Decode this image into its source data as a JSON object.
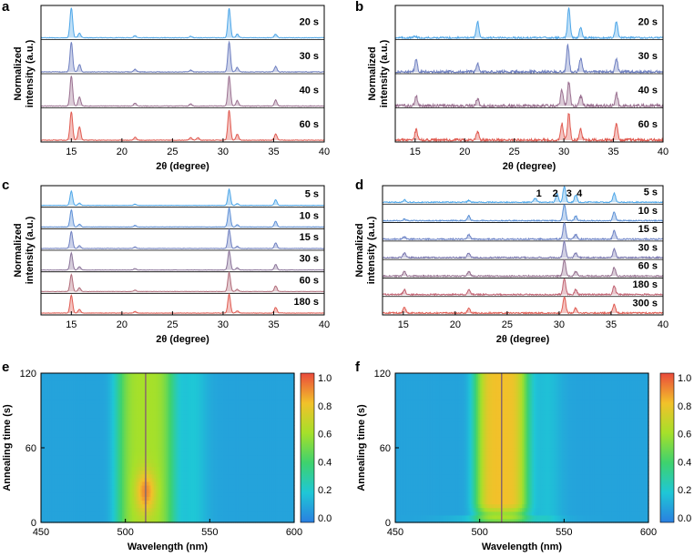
{
  "panels": [
    {
      "id": "a",
      "label": "a",
      "type": "xrd",
      "xlabel": "2θ (degree)",
      "ylabel": [
        "Normalized",
        "intensity (a.u.)"
      ],
      "xlim": [
        12,
        40
      ],
      "xticks": [
        15,
        20,
        25,
        30,
        35,
        40
      ],
      "traces": [
        {
          "label": "20 s",
          "color": "#4da6e8",
          "peaks": [
            [
              15.0,
              1.0
            ],
            [
              15.8,
              0.15
            ],
            [
              21.3,
              0.07
            ],
            [
              26.8,
              0.05
            ],
            [
              30.6,
              0.98
            ],
            [
              31.4,
              0.12
            ],
            [
              35.2,
              0.12
            ]
          ],
          "noise": 0.01
        },
        {
          "label": "30 s",
          "color": "#6e7fc0",
          "peaks": [
            [
              15.0,
              1.0
            ],
            [
              15.8,
              0.25
            ],
            [
              21.3,
              0.09
            ],
            [
              26.8,
              0.06
            ],
            [
              30.6,
              1.0
            ],
            [
              31.4,
              0.15
            ],
            [
              35.2,
              0.18
            ]
          ],
          "noise": 0.01
        },
        {
          "label": "40 s",
          "color": "#9a7090",
          "peaks": [
            [
              15.0,
              1.0
            ],
            [
              15.8,
              0.3
            ],
            [
              21.3,
              0.1
            ],
            [
              26.8,
              0.07
            ],
            [
              30.6,
              1.0
            ],
            [
              31.4,
              0.18
            ],
            [
              35.2,
              0.2
            ]
          ],
          "noise": 0.01
        },
        {
          "label": "60 s",
          "color": "#e05a50",
          "peaks": [
            [
              15.0,
              0.95
            ],
            [
              15.8,
              0.45
            ],
            [
              21.3,
              0.1
            ],
            [
              26.8,
              0.08
            ],
            [
              27.5,
              0.08
            ],
            [
              30.6,
              1.0
            ],
            [
              31.4,
              0.2
            ],
            [
              35.2,
              0.2
            ]
          ],
          "noise": 0.01
        }
      ]
    },
    {
      "id": "b",
      "label": "b",
      "type": "xrd",
      "xlabel": "2θ (degree)",
      "ylabel": [
        "Normalized",
        "intensity (a.u.)"
      ],
      "xlim": [
        13,
        40
      ],
      "xticks": [
        15,
        20,
        25,
        30,
        35,
        40
      ],
      "traces": [
        {
          "label": "20 s",
          "color": "#4da6e8",
          "peaks": [
            [
              21.3,
              0.55
            ],
            [
              30.5,
              1.0
            ],
            [
              31.7,
              0.35
            ],
            [
              35.3,
              0.55
            ],
            [
              15.0,
              0.05
            ]
          ],
          "noise": 0.03
        },
        {
          "label": "30 s",
          "color": "#6e7fc0",
          "peaks": [
            [
              15.1,
              0.4
            ],
            [
              21.3,
              0.3
            ],
            [
              30.4,
              0.9
            ],
            [
              31.7,
              0.45
            ],
            [
              35.3,
              0.45
            ]
          ],
          "noise": 0.05
        },
        {
          "label": "40 s",
          "color": "#9a7090",
          "peaks": [
            [
              15.1,
              0.35
            ],
            [
              21.3,
              0.25
            ],
            [
              29.8,
              0.55
            ],
            [
              30.5,
              0.8
            ],
            [
              31.7,
              0.35
            ],
            [
              35.3,
              0.45
            ]
          ],
          "noise": 0.06
        },
        {
          "label": "60 s",
          "color": "#e05a50",
          "peaks": [
            [
              15.1,
              0.35
            ],
            [
              21.3,
              0.3
            ],
            [
              29.8,
              0.55
            ],
            [
              30.5,
              0.9
            ],
            [
              31.7,
              0.35
            ],
            [
              35.3,
              0.6
            ]
          ],
          "noise": 0.05
        }
      ]
    },
    {
      "id": "c",
      "label": "c",
      "type": "xrd",
      "xlabel": "2θ (degree)",
      "ylabel": [
        "Normalized",
        "intensity (a.u.)"
      ],
      "xlim": [
        12,
        40
      ],
      "xticks": [
        15,
        20,
        25,
        30,
        35,
        40
      ],
      "traces": [
        {
          "label": "5 s",
          "color": "#4da6e8",
          "peaks": [
            [
              15.0,
              0.75
            ],
            [
              15.8,
              0.12
            ],
            [
              21.3,
              0.06
            ],
            [
              30.6,
              0.85
            ],
            [
              31.4,
              0.1
            ],
            [
              35.2,
              0.3
            ]
          ],
          "noise": 0.01
        },
        {
          "label": "10 s",
          "color": "#5d8fd6",
          "peaks": [
            [
              15.0,
              0.9
            ],
            [
              15.8,
              0.15
            ],
            [
              21.3,
              0.08
            ],
            [
              30.6,
              1.0
            ],
            [
              31.4,
              0.12
            ],
            [
              35.2,
              0.3
            ]
          ],
          "noise": 0.01
        },
        {
          "label": "15 s",
          "color": "#6e7fc0",
          "peaks": [
            [
              15.0,
              0.9
            ],
            [
              15.8,
              0.15
            ],
            [
              21.3,
              0.08
            ],
            [
              30.6,
              1.0
            ],
            [
              31.4,
              0.12
            ],
            [
              35.2,
              0.3
            ]
          ],
          "noise": 0.01
        },
        {
          "label": "30 s",
          "color": "#8a7399",
          "peaks": [
            [
              15.0,
              0.9
            ],
            [
              15.8,
              0.18
            ],
            [
              21.3,
              0.08
            ],
            [
              30.6,
              1.0
            ],
            [
              31.4,
              0.12
            ],
            [
              35.2,
              0.3
            ]
          ],
          "noise": 0.01
        },
        {
          "label": "60 s",
          "color": "#b06a78",
          "peaks": [
            [
              15.0,
              0.9
            ],
            [
              15.8,
              0.2
            ],
            [
              21.3,
              0.08
            ],
            [
              30.6,
              1.0
            ],
            [
              31.4,
              0.12
            ],
            [
              35.2,
              0.3
            ]
          ],
          "noise": 0.01
        },
        {
          "label": "180 s",
          "color": "#e05a50",
          "peaks": [
            [
              15.0,
              0.95
            ],
            [
              15.8,
              0.2
            ],
            [
              21.3,
              0.08
            ],
            [
              30.6,
              1.0
            ],
            [
              31.4,
              0.12
            ],
            [
              35.2,
              0.3
            ]
          ],
          "noise": 0.01
        }
      ]
    },
    {
      "id": "d",
      "label": "d",
      "type": "xrd",
      "xlabel": "2θ (degree)",
      "ylabel": [
        "Normalized",
        "intensity (a.u.)"
      ],
      "xlim": [
        13,
        40
      ],
      "xticks": [
        15,
        20,
        25,
        30,
        35,
        40
      ],
      "peak_markers": [
        {
          "label": "1",
          "x": 27.7
        },
        {
          "label": "2",
          "x": 29.8
        },
        {
          "label": "3",
          "x": 30.6
        },
        {
          "label": "4",
          "x": 31.6
        }
      ],
      "traces": [
        {
          "label": "5 s",
          "color": "#4da6e8",
          "peaks": [
            [
              15.1,
              0.15
            ],
            [
              21.3,
              0.12
            ],
            [
              27.7,
              0.25
            ],
            [
              29.8,
              0.55
            ],
            [
              30.5,
              1.0
            ],
            [
              31.6,
              0.45
            ],
            [
              35.3,
              0.55
            ]
          ],
          "noise": 0.04
        },
        {
          "label": "10 s",
          "color": "#5a8fd5",
          "peaks": [
            [
              15.1,
              0.1
            ],
            [
              21.3,
              0.3
            ],
            [
              30.5,
              1.0
            ],
            [
              31.6,
              0.3
            ],
            [
              35.3,
              0.55
            ]
          ],
          "noise": 0.04
        },
        {
          "label": "15 s",
          "color": "#6a80c4",
          "peaks": [
            [
              15.1,
              0.15
            ],
            [
              21.3,
              0.3
            ],
            [
              30.5,
              1.0
            ],
            [
              31.6,
              0.3
            ],
            [
              35.3,
              0.55
            ]
          ],
          "noise": 0.05
        },
        {
          "label": "30 s",
          "color": "#7a78b0",
          "peaks": [
            [
              15.1,
              0.3
            ],
            [
              21.3,
              0.3
            ],
            [
              30.5,
              1.0
            ],
            [
              31.6,
              0.3
            ],
            [
              35.3,
              0.55
            ]
          ],
          "noise": 0.05
        },
        {
          "label": "60 s",
          "color": "#95708f",
          "peaks": [
            [
              15.1,
              0.3
            ],
            [
              21.3,
              0.3
            ],
            [
              30.5,
              1.0
            ],
            [
              31.6,
              0.3
            ],
            [
              35.3,
              0.55
            ]
          ],
          "noise": 0.05
        },
        {
          "label": "180 s",
          "color": "#c06070",
          "peaks": [
            [
              15.1,
              0.3
            ],
            [
              21.3,
              0.3
            ],
            [
              30.5,
              1.0
            ],
            [
              31.6,
              0.3
            ],
            [
              35.3,
              0.55
            ]
          ],
          "noise": 0.05
        },
        {
          "label": "300 s",
          "color": "#e05a50",
          "peaks": [
            [
              15.1,
              0.35
            ],
            [
              21.3,
              0.3
            ],
            [
              30.5,
              1.0
            ],
            [
              31.6,
              0.3
            ],
            [
              35.3,
              0.55
            ]
          ],
          "noise": 0.05
        }
      ]
    },
    {
      "id": "e",
      "label": "e",
      "type": "heatmap",
      "xlabel": "Wavelength (nm)",
      "ylabel": "Annealing time (s)",
      "xlim": [
        450,
        600
      ],
      "ylim": [
        0,
        120
      ],
      "xticks": [
        450,
        500,
        550,
        600
      ],
      "yticks": [
        0,
        60,
        120
      ],
      "peak_line_nm": 512,
      "colorbar_ticks": [
        "0.0",
        "0.2",
        "0.4",
        "0.6",
        "0.8",
        "1.0"
      ]
    },
    {
      "id": "f",
      "label": "f",
      "type": "heatmap",
      "xlabel": "Wavelength (nm)",
      "ylabel": "Annealing time (s)",
      "xlim": [
        450,
        600
      ],
      "ylim": [
        0,
        120
      ],
      "xticks": [
        450,
        500,
        550,
        600
      ],
      "yticks": [
        0,
        60,
        120
      ],
      "peak_line_nm": 513,
      "colorbar_ticks": [
        "0.0",
        "0.2",
        "0.4",
        "0.6",
        "0.8",
        "1.0"
      ]
    }
  ],
  "chart_data": [
    {
      "type": "area",
      "title": "a",
      "xlabel": "2θ (degree)",
      "ylabel": "Normalized intensity (a.u.)",
      "xlim": [
        12,
        40
      ],
      "series": [
        {
          "name": "20 s"
        },
        {
          "name": "30 s"
        },
        {
          "name": "40 s"
        },
        {
          "name": "60 s"
        }
      ],
      "major_peaks_deg": [
        15.0,
        30.6,
        35.2
      ]
    },
    {
      "type": "line",
      "title": "b",
      "xlabel": "2θ (degree)",
      "ylabel": "Normalized intensity (a.u.)",
      "xlim": [
        13,
        40
      ],
      "series": [
        {
          "name": "20 s"
        },
        {
          "name": "30 s"
        },
        {
          "name": "40 s"
        },
        {
          "name": "60 s"
        }
      ],
      "major_peaks_deg": [
        15.1,
        21.3,
        29.8,
        30.5,
        31.7,
        35.3
      ]
    },
    {
      "type": "area",
      "title": "c",
      "xlabel": "2θ (degree)",
      "ylabel": "Normalized intensity (a.u.)",
      "xlim": [
        12,
        40
      ],
      "series": [
        {
          "name": "5 s"
        },
        {
          "name": "10 s"
        },
        {
          "name": "15 s"
        },
        {
          "name": "30 s"
        },
        {
          "name": "60 s"
        },
        {
          "name": "180 s"
        }
      ],
      "major_peaks_deg": [
        15.0,
        30.6,
        35.2
      ]
    },
    {
      "type": "line",
      "title": "d",
      "xlabel": "2θ (degree)",
      "ylabel": "Normalized intensity (a.u.)",
      "xlim": [
        13,
        40
      ],
      "series": [
        {
          "name": "5 s"
        },
        {
          "name": "10 s"
        },
        {
          "name": "15 s"
        },
        {
          "name": "30 s"
        },
        {
          "name": "60 s"
        },
        {
          "name": "180 s"
        },
        {
          "name": "300 s"
        }
      ],
      "annotations": [
        "1",
        "2",
        "3",
        "4"
      ]
    },
    {
      "type": "heatmap",
      "title": "e",
      "xlabel": "Wavelength (nm)",
      "ylabel": "Annealing time (s)",
      "xlim": [
        450,
        600
      ],
      "ylim": [
        0,
        120
      ],
      "peak_nm": 512,
      "colorbar": [
        0.0,
        1.0
      ]
    },
    {
      "type": "heatmap",
      "title": "f",
      "xlabel": "Wavelength (nm)",
      "ylabel": "Annealing time (s)",
      "xlim": [
        450,
        600
      ],
      "ylim": [
        0,
        120
      ],
      "peak_nm": 513,
      "colorbar": [
        0.0,
        1.0
      ]
    }
  ]
}
